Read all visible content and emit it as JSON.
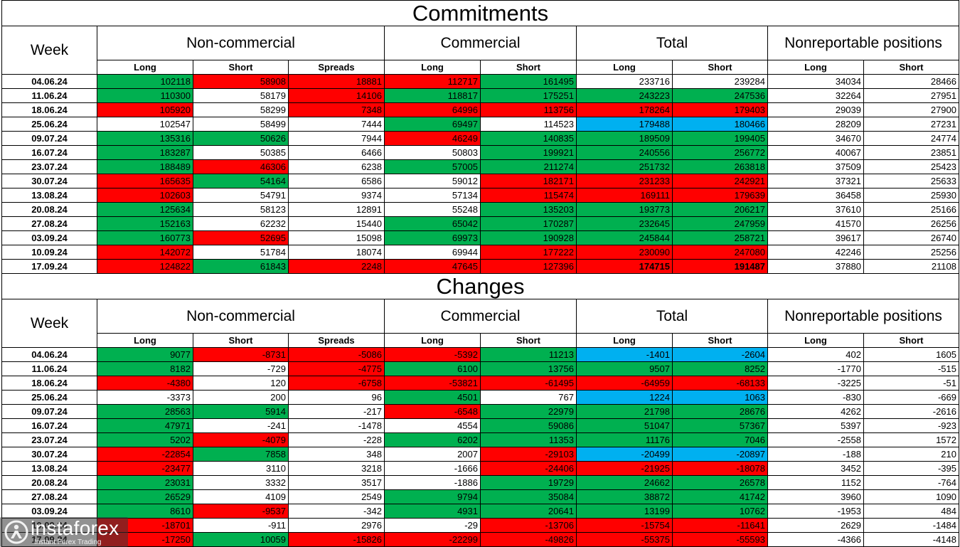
{
  "brand": {
    "name": "instaforex",
    "tagline": "Instant Forex Trading"
  },
  "colors": {
    "green": "#00B050",
    "red": "#FF0000",
    "blue": "#00B0F0"
  },
  "chart_data": [
    {
      "type": "table",
      "title": "Commitments",
      "week_header": "Week",
      "groups": [
        {
          "label": "Non-commercial",
          "columns": [
            "Long",
            "Short",
            "Spreads"
          ]
        },
        {
          "label": "Commercial",
          "columns": [
            "Long",
            "Short"
          ]
        },
        {
          "label": "Total",
          "columns": [
            "Long",
            "Short"
          ]
        },
        {
          "label": "Nonreportable positions",
          "columns": [
            "Long",
            "Short"
          ]
        }
      ],
      "rows": [
        {
          "week": "04.06.24",
          "values": [
            102118,
            58908,
            18881,
            112717,
            161495,
            233716,
            239284,
            34034,
            28466
          ],
          "fills": [
            "green",
            "red",
            "red",
            "red",
            "green",
            null,
            null,
            null,
            null
          ]
        },
        {
          "week": "11.06.24",
          "values": [
            110300,
            58179,
            14106,
            118817,
            175251,
            243223,
            247536,
            32264,
            27951
          ],
          "fills": [
            "green",
            null,
            "red",
            "green",
            "green",
            "green",
            "green",
            null,
            null
          ]
        },
        {
          "week": "18.06.24",
          "values": [
            105920,
            58299,
            7348,
            64996,
            113756,
            178264,
            179403,
            29039,
            27900
          ],
          "fills": [
            "red",
            null,
            "red",
            "red",
            "red",
            "red",
            "red",
            null,
            null
          ]
        },
        {
          "week": "25.06.24",
          "values": [
            102547,
            58499,
            7444,
            69497,
            114523,
            179488,
            180466,
            28209,
            27231
          ],
          "fills": [
            null,
            null,
            null,
            "green",
            null,
            "blue",
            "blue",
            null,
            null
          ]
        },
        {
          "week": "09.07.24",
          "values": [
            135316,
            50626,
            7944,
            46249,
            140835,
            189509,
            199405,
            34670,
            24774
          ],
          "fills": [
            "green",
            "green",
            null,
            "red",
            "green",
            "green",
            "green",
            null,
            null
          ]
        },
        {
          "week": "16.07.24",
          "values": [
            183287,
            50385,
            6466,
            50803,
            199921,
            240556,
            256772,
            40067,
            23851
          ],
          "fills": [
            "green",
            null,
            null,
            null,
            "green",
            "green",
            "green",
            null,
            null
          ]
        },
        {
          "week": "23.07.24",
          "values": [
            188489,
            46306,
            6238,
            57005,
            211274,
            251732,
            263818,
            37509,
            25423
          ],
          "fills": [
            "green",
            "red",
            null,
            "green",
            "green",
            "green",
            "green",
            null,
            null
          ]
        },
        {
          "week": "30.07.24",
          "values": [
            165635,
            54164,
            6586,
            59012,
            182171,
            231233,
            242921,
            37321,
            25633
          ],
          "fills": [
            "red",
            "green",
            null,
            null,
            "red",
            "red",
            "red",
            null,
            null
          ]
        },
        {
          "week": "13.08.24",
          "values": [
            102603,
            54791,
            9374,
            57134,
            115474,
            169111,
            179639,
            36458,
            25930
          ],
          "fills": [
            "red",
            null,
            null,
            null,
            "red",
            "red",
            "red",
            null,
            null
          ]
        },
        {
          "week": "20.08.24",
          "values": [
            125634,
            58123,
            12891,
            55248,
            135203,
            193773,
            206217,
            37610,
            25166
          ],
          "fills": [
            "green",
            null,
            null,
            null,
            "green",
            "green",
            "green",
            null,
            null
          ]
        },
        {
          "week": "27.08.24",
          "values": [
            152163,
            62232,
            15440,
            65042,
            170287,
            232645,
            247959,
            41570,
            26256
          ],
          "fills": [
            "green",
            null,
            null,
            "green",
            "green",
            "green",
            "green",
            null,
            null
          ]
        },
        {
          "week": "03.09.24",
          "values": [
            160773,
            52695,
            15098,
            69973,
            190928,
            245844,
            258721,
            39617,
            26740
          ],
          "fills": [
            "green",
            "red",
            null,
            "green",
            "green",
            "green",
            "green",
            null,
            null
          ]
        },
        {
          "week": "10.09.24",
          "values": [
            142072,
            51784,
            18074,
            69944,
            177222,
            230090,
            247080,
            42246,
            25256
          ],
          "fills": [
            "red",
            null,
            null,
            null,
            "red",
            "red",
            "red",
            null,
            null
          ]
        },
        {
          "week": "17.09.24",
          "values": [
            124822,
            61843,
            2248,
            47645,
            127396,
            174715,
            191487,
            37880,
            21108
          ],
          "fills": [
            "red",
            "green",
            "red",
            "red",
            "red",
            "red",
            "red",
            null,
            null
          ],
          "bold": [
            5,
            6
          ]
        }
      ]
    },
    {
      "type": "table",
      "title": "Changes",
      "week_header": "Week",
      "groups": [
        {
          "label": "Non-commercial",
          "columns": [
            "Long",
            "Short",
            "Spreads"
          ]
        },
        {
          "label": "Commercial",
          "columns": [
            "Long",
            "Short"
          ]
        },
        {
          "label": "Total",
          "columns": [
            "Long",
            "Short"
          ]
        },
        {
          "label": "Nonreportable positions",
          "columns": [
            "Long",
            "Short"
          ]
        }
      ],
      "rows": [
        {
          "week": "04.06.24",
          "values": [
            9077,
            -8731,
            -5086,
            -5392,
            11213,
            -1401,
            -2604,
            402,
            1605
          ],
          "fills": [
            "green",
            "red",
            "red",
            "red",
            "green",
            "blue",
            "blue",
            null,
            null
          ]
        },
        {
          "week": "11.06.24",
          "values": [
            8182,
            -729,
            -4775,
            6100,
            13756,
            9507,
            8252,
            -1770,
            -515
          ],
          "fills": [
            "green",
            null,
            "red",
            "green",
            "green",
            "green",
            "green",
            null,
            null
          ]
        },
        {
          "week": "18.06.24",
          "values": [
            -4380,
            120,
            -6758,
            -53821,
            -61495,
            -64959,
            -68133,
            -3225,
            -51
          ],
          "fills": [
            "red",
            null,
            "red",
            "red",
            "red",
            "red",
            "red",
            null,
            null
          ]
        },
        {
          "week": "25.06.24",
          "values": [
            -3373,
            200,
            96,
            4501,
            767,
            1224,
            1063,
            -830,
            -669
          ],
          "fills": [
            null,
            null,
            null,
            "green",
            null,
            "blue",
            "blue",
            null,
            null
          ]
        },
        {
          "week": "09.07.24",
          "values": [
            28563,
            5914,
            -217,
            -6548,
            22979,
            21798,
            28676,
            4262,
            -2616
          ],
          "fills": [
            "green",
            "green",
            null,
            "red",
            "green",
            "green",
            "green",
            null,
            null
          ]
        },
        {
          "week": "16.07.24",
          "values": [
            47971,
            -241,
            -1478,
            4554,
            59086,
            51047,
            57367,
            5397,
            -923
          ],
          "fills": [
            "green",
            null,
            null,
            null,
            "green",
            "green",
            "green",
            null,
            null
          ]
        },
        {
          "week": "23.07.24",
          "values": [
            5202,
            -4079,
            -228,
            6202,
            11353,
            11176,
            7046,
            -2558,
            1572
          ],
          "fills": [
            "green",
            "red",
            null,
            "green",
            "green",
            "green",
            "green",
            null,
            null
          ]
        },
        {
          "week": "30.07.24",
          "values": [
            -22854,
            7858,
            348,
            2007,
            -29103,
            -20499,
            -20897,
            -188,
            210
          ],
          "fills": [
            "red",
            "green",
            null,
            null,
            "red",
            "blue",
            "blue",
            null,
            null
          ]
        },
        {
          "week": "13.08.24",
          "values": [
            -23477,
            3110,
            3218,
            -1666,
            -24406,
            -21925,
            -18078,
            3452,
            -395
          ],
          "fills": [
            "red",
            null,
            null,
            null,
            "red",
            "red",
            "red",
            null,
            null
          ]
        },
        {
          "week": "20.08.24",
          "values": [
            23031,
            3332,
            3517,
            -1886,
            19729,
            24662,
            26578,
            1152,
            -764
          ],
          "fills": [
            "green",
            null,
            null,
            null,
            "green",
            "green",
            "green",
            null,
            null
          ]
        },
        {
          "week": "27.08.24",
          "values": [
            26529,
            4109,
            2549,
            9794,
            35084,
            38872,
            41742,
            3960,
            1090
          ],
          "fills": [
            "green",
            null,
            null,
            "green",
            "green",
            "green",
            "green",
            null,
            null
          ]
        },
        {
          "week": "03.09.24",
          "values": [
            8610,
            -9537,
            -342,
            4931,
            20641,
            13199,
            10762,
            -1953,
            484
          ],
          "fills": [
            "green",
            "red",
            null,
            "green",
            "green",
            "green",
            "green",
            null,
            null
          ]
        },
        {
          "week": "10.09.24",
          "values": [
            -18701,
            -911,
            2976,
            -29,
            -13706,
            -15754,
            -11641,
            2629,
            -1484
          ],
          "fills": [
            "red",
            null,
            null,
            null,
            "red",
            "red",
            "red",
            null,
            null
          ]
        },
        {
          "week": "17.09.24",
          "values": [
            -17250,
            10059,
            -15826,
            -22299,
            -49826,
            -55375,
            -55593,
            -4366,
            -4148
          ],
          "fills": [
            "red",
            "green",
            "red",
            "red",
            "red",
            "red",
            "red",
            null,
            null
          ]
        }
      ]
    }
  ]
}
